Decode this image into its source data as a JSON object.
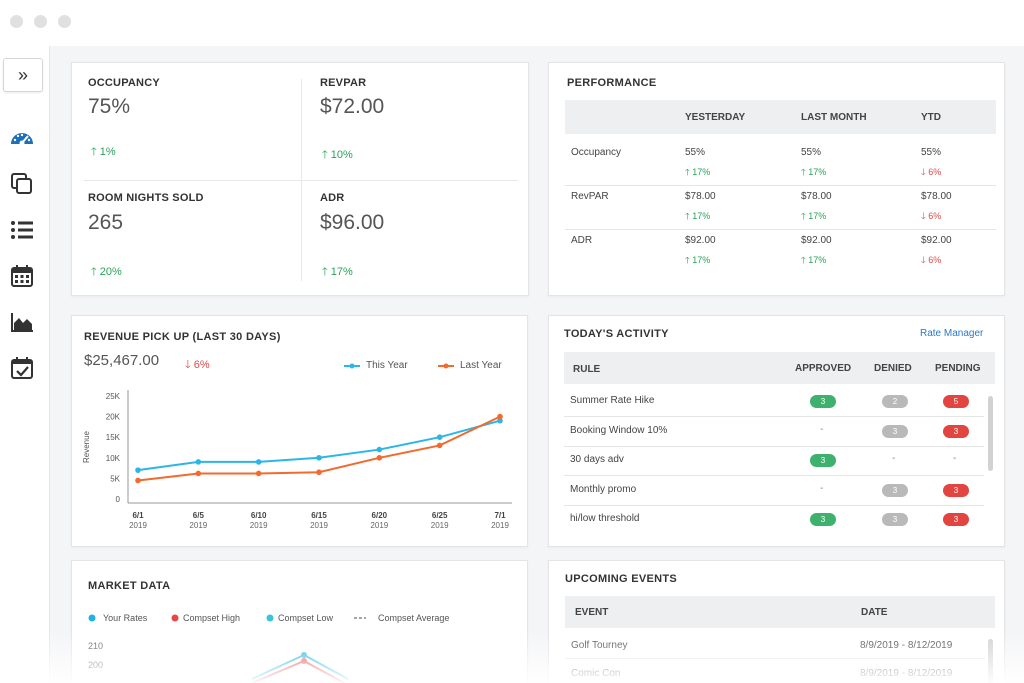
{
  "sidebar": {
    "expand_icon": "double-chevron-right-icon",
    "expand_glyph": "»",
    "items": [
      {
        "name": "dashboard",
        "icon": "speedometer-icon",
        "active": true
      },
      {
        "name": "copy",
        "icon": "copy-icon"
      },
      {
        "name": "list",
        "icon": "list-icon"
      },
      {
        "name": "calendar",
        "icon": "calendar-icon"
      },
      {
        "name": "area-chart",
        "icon": "area-chart-icon"
      },
      {
        "name": "calendar-check",
        "icon": "calendar-check-icon"
      }
    ]
  },
  "kpis": [
    {
      "label": "OCCUPANCY",
      "value": "75%",
      "change": "1%"
    },
    {
      "label": "REVPAR",
      "value": "$72.00",
      "change": "10%"
    },
    {
      "label": "ROOM NIGHTS SOLD",
      "value": "265",
      "change": "20%"
    },
    {
      "label": "ADR",
      "value": "$96.00",
      "change": "17%"
    }
  ],
  "performance": {
    "title": "PERFORMANCE",
    "columns": [
      "YESTERDAY",
      "LAST MONTH",
      "YTD"
    ],
    "rows": [
      {
        "label": "Occupancy",
        "cells": [
          {
            "value": "55%",
            "change": "17%",
            "dir": "up"
          },
          {
            "value": "55%",
            "change": "17%",
            "dir": "up"
          },
          {
            "value": "55%",
            "change": "6%",
            "dir": "down"
          }
        ]
      },
      {
        "label": "RevPAR",
        "cells": [
          {
            "value": "$78.00",
            "change": "17%",
            "dir": "up"
          },
          {
            "value": "$78.00",
            "change": "17%",
            "dir": "up"
          },
          {
            "value": "$78.00",
            "change": "6%",
            "dir": "down"
          }
        ]
      },
      {
        "label": "ADR",
        "cells": [
          {
            "value": "$92.00",
            "change": "17%",
            "dir": "up"
          },
          {
            "value": "$92.00",
            "change": "17%",
            "dir": "up"
          },
          {
            "value": "$92.00",
            "change": "6%",
            "dir": "down"
          }
        ]
      }
    ]
  },
  "revenue": {
    "title": "REVENUE PICK UP (LAST 30 DAYS)",
    "total": "$25,467.00",
    "change": "6%",
    "legend": [
      "This Year",
      "Last Year"
    ]
  },
  "chart_data": [
    {
      "type": "line",
      "title": "REVENUE PICK UP (LAST 30 DAYS)",
      "ylabel": "Revenue",
      "ylim": [
        0,
        25000
      ],
      "yticks": [
        "25K",
        "20K",
        "15K",
        "10K",
        "5K",
        "0"
      ],
      "categories": [
        "6/1",
        "6/5",
        "6/10",
        "6/15",
        "6/20",
        "6/25",
        "7/1"
      ],
      "category_years": [
        "2019",
        "2019",
        "2019",
        "2019",
        "2019",
        "2019",
        "2019"
      ],
      "series": [
        {
          "name": "This Year",
          "color": "#2bb6e8",
          "values": [
            7000,
            9000,
            9000,
            10000,
            12000,
            15000,
            19000
          ]
        },
        {
          "name": "Last Year",
          "color": "#f26a2e",
          "values": [
            4500,
            6200,
            6200,
            6500,
            10000,
            13000,
            20000
          ]
        }
      ]
    },
    {
      "type": "line",
      "title": "MARKET DATA",
      "yticks": [
        "210",
        "200"
      ],
      "legend": [
        "Your Rates",
        "Compset High",
        "Compset Low",
        "Compset Average"
      ],
      "series": [
        {
          "name": "Your Rates",
          "color": "#1fb3e4"
        },
        {
          "name": "Compset High",
          "color": "#e8454b"
        },
        {
          "name": "Compset Low",
          "color": "#37c6d8"
        },
        {
          "name": "Compset Average",
          "color": "#888888"
        }
      ]
    }
  ],
  "activity": {
    "title": "TODAY'S ACTIVITY",
    "link": "Rate Manager",
    "columns": [
      "RULE",
      "APPROVED",
      "DENIED",
      "PENDING"
    ],
    "rows": [
      {
        "rule": "Summer Rate Hike",
        "approved": "3",
        "denied": "2",
        "pending": "5"
      },
      {
        "rule": "Booking Window 10%",
        "approved": "-",
        "denied": "3",
        "pending": "3"
      },
      {
        "rule": "30 days adv",
        "approved": "3",
        "denied": "-",
        "pending": "-"
      },
      {
        "rule": "Monthly promo",
        "approved": "-",
        "denied": "3",
        "pending": "3"
      },
      {
        "rule": "hi/low threshold",
        "approved": "3",
        "denied": "3",
        "pending": "3"
      }
    ]
  },
  "market": {
    "title": "MARKET DATA"
  },
  "events": {
    "title": "UPCOMING EVENTS",
    "columns": [
      "EVENT",
      "DATE"
    ],
    "rows": [
      {
        "event": "Golf Tourney",
        "date": "8/9/2019 - 8/12/2019"
      },
      {
        "event": "Comic Con",
        "date": "8/9/2019 - 8/12/2019"
      }
    ]
  }
}
